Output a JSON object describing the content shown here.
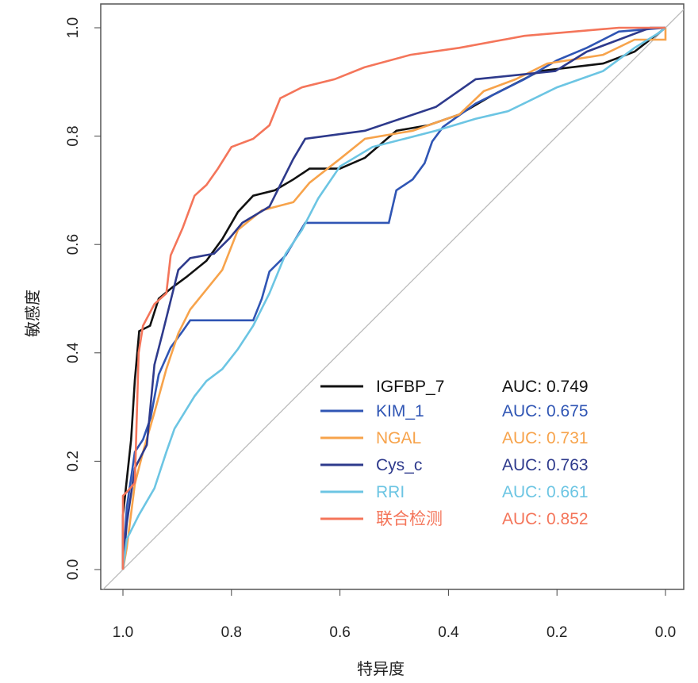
{
  "chart_data": {
    "type": "line",
    "xlabel": "特异度",
    "ylabel": "敏感度",
    "xlim": [
      1.0,
      0.0
    ],
    "ylim": [
      0.0,
      1.0
    ],
    "x_reversed": true,
    "grid": false,
    "reference_line": "diagonal",
    "legend_position": "bottom-right",
    "xticks": [
      "1.0",
      "0.8",
      "0.6",
      "0.4",
      "0.2",
      "0.0"
    ],
    "yticks": [
      "0.0",
      "0.2",
      "0.4",
      "0.6",
      "0.8",
      "1.0"
    ],
    "series": [
      {
        "name": "IGFBP_7",
        "auc_label": "AUC: 0.749",
        "color": "#111111",
        "points": [
          [
            1,
            0
          ],
          [
            1,
            0.1
          ],
          [
            0.985,
            0.24
          ],
          [
            0.978,
            0.35
          ],
          [
            0.97,
            0.44
          ],
          [
            0.95,
            0.45
          ],
          [
            0.934,
            0.5
          ],
          [
            0.91,
            0.52
          ],
          [
            0.883,
            0.54
          ],
          [
            0.846,
            0.57
          ],
          [
            0.817,
            0.61
          ],
          [
            0.788,
            0.66
          ],
          [
            0.76,
            0.69
          ],
          [
            0.72,
            0.7
          ],
          [
            0.686,
            0.72
          ],
          [
            0.656,
            0.74
          ],
          [
            0.6,
            0.74
          ],
          [
            0.554,
            0.76
          ],
          [
            0.496,
            0.81
          ],
          [
            0.437,
            0.82
          ],
          [
            0.38,
            0.84
          ],
          [
            0.32,
            0.875
          ],
          [
            0.232,
            0.92
          ],
          [
            0.115,
            0.934
          ],
          [
            0.057,
            0.956
          ],
          [
            0.013,
            0.99
          ],
          [
            0,
            1
          ]
        ]
      },
      {
        "name": "KIM_1",
        "auc_label": "AUC: 0.675",
        "color": "#2F55B4",
        "points": [
          [
            1,
            0
          ],
          [
            0.993,
            0.114
          ],
          [
            0.978,
            0.217
          ],
          [
            0.963,
            0.24
          ],
          [
            0.949,
            0.28
          ],
          [
            0.934,
            0.36
          ],
          [
            0.912,
            0.41
          ],
          [
            0.89,
            0.44
          ],
          [
            0.876,
            0.46
          ],
          [
            0.76,
            0.46
          ],
          [
            0.744,
            0.5
          ],
          [
            0.73,
            0.55
          ],
          [
            0.7,
            0.58
          ],
          [
            0.664,
            0.64
          ],
          [
            0.51,
            0.64
          ],
          [
            0.496,
            0.7
          ],
          [
            0.466,
            0.72
          ],
          [
            0.444,
            0.75
          ],
          [
            0.43,
            0.79
          ],
          [
            0.41,
            0.817
          ],
          [
            0.35,
            0.86
          ],
          [
            0.26,
            0.905
          ],
          [
            0.2,
            0.94
          ],
          [
            0.145,
            0.963
          ],
          [
            0.086,
            0.993
          ],
          [
            0,
            1
          ]
        ]
      },
      {
        "name": "NGAL",
        "auc_label": "AUC: 0.731",
        "color": "#F7A34B",
        "points": [
          [
            1,
            0
          ],
          [
            0.993,
            0.04
          ],
          [
            0.978,
            0.158
          ],
          [
            0.963,
            0.217
          ],
          [
            0.942,
            0.29
          ],
          [
            0.92,
            0.37
          ],
          [
            0.898,
            0.436
          ],
          [
            0.876,
            0.48
          ],
          [
            0.846,
            0.517
          ],
          [
            0.817,
            0.553
          ],
          [
            0.788,
            0.627
          ],
          [
            0.744,
            0.663
          ],
          [
            0.686,
            0.678
          ],
          [
            0.656,
            0.714
          ],
          [
            0.6,
            0.758
          ],
          [
            0.554,
            0.795
          ],
          [
            0.466,
            0.81
          ],
          [
            0.38,
            0.84
          ],
          [
            0.335,
            0.883
          ],
          [
            0.276,
            0.905
          ],
          [
            0.218,
            0.934
          ],
          [
            0.115,
            0.95
          ],
          [
            0.057,
            0.978
          ],
          [
            0,
            0.978
          ],
          [
            0,
            1
          ]
        ]
      },
      {
        "name": "Cys_c",
        "auc_label": "AUC: 0.763",
        "color": "#2E3A8C",
        "points": [
          [
            1,
            0
          ],
          [
            0.993,
            0.085
          ],
          [
            0.978,
            0.187
          ],
          [
            0.956,
            0.23
          ],
          [
            0.942,
            0.378
          ],
          [
            0.927,
            0.436
          ],
          [
            0.898,
            0.553
          ],
          [
            0.876,
            0.575
          ],
          [
            0.832,
            0.583
          ],
          [
            0.803,
            0.612
          ],
          [
            0.78,
            0.64
          ],
          [
            0.73,
            0.67
          ],
          [
            0.686,
            0.758
          ],
          [
            0.664,
            0.795
          ],
          [
            0.554,
            0.81
          ],
          [
            0.423,
            0.854
          ],
          [
            0.35,
            0.905
          ],
          [
            0.203,
            0.92
          ],
          [
            0.145,
            0.956
          ],
          [
            0.086,
            0.978
          ],
          [
            0.028,
            1
          ],
          [
            0,
            1
          ]
        ]
      },
      {
        "name": "RRI",
        "auc_label": "AUC: 0.661",
        "color": "#6CC5E3",
        "points": [
          [
            1,
            0
          ],
          [
            0.993,
            0.056
          ],
          [
            0.971,
            0.1
          ],
          [
            0.942,
            0.15
          ],
          [
            0.92,
            0.217
          ],
          [
            0.905,
            0.26
          ],
          [
            0.868,
            0.32
          ],
          [
            0.846,
            0.348
          ],
          [
            0.817,
            0.37
          ],
          [
            0.788,
            0.407
          ],
          [
            0.76,
            0.45
          ],
          [
            0.73,
            0.51
          ],
          [
            0.7,
            0.583
          ],
          [
            0.67,
            0.627
          ],
          [
            0.64,
            0.685
          ],
          [
            0.6,
            0.744
          ],
          [
            0.54,
            0.78
          ],
          [
            0.423,
            0.81
          ],
          [
            0.35,
            0.832
          ],
          [
            0.29,
            0.846
          ],
          [
            0.2,
            0.89
          ],
          [
            0.115,
            0.92
          ],
          [
            0.057,
            0.963
          ],
          [
            0.013,
            0.99
          ],
          [
            0,
            1
          ]
        ]
      },
      {
        "name": "联合检测",
        "auc_label": "AUC: 0.852",
        "color": "#F4755A",
        "points": [
          [
            1,
            0
          ],
          [
            1,
            0.136
          ],
          [
            0.993,
            0.143
          ],
          [
            0.978,
            0.16
          ],
          [
            0.971,
            0.4
          ],
          [
            0.963,
            0.45
          ],
          [
            0.942,
            0.49
          ],
          [
            0.92,
            0.51
          ],
          [
            0.912,
            0.58
          ],
          [
            0.89,
            0.63
          ],
          [
            0.868,
            0.69
          ],
          [
            0.846,
            0.71
          ],
          [
            0.825,
            0.74
          ],
          [
            0.8,
            0.78
          ],
          [
            0.76,
            0.795
          ],
          [
            0.73,
            0.82
          ],
          [
            0.71,
            0.87
          ],
          [
            0.67,
            0.89
          ],
          [
            0.61,
            0.905
          ],
          [
            0.555,
            0.927
          ],
          [
            0.47,
            0.95
          ],
          [
            0.38,
            0.963
          ],
          [
            0.26,
            0.985
          ],
          [
            0.086,
            1
          ],
          [
            0,
            1
          ]
        ]
      }
    ]
  }
}
